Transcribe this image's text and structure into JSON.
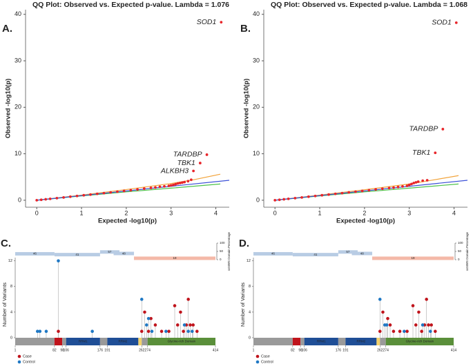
{
  "chart_data": [
    {
      "type": "scatter",
      "panel": "A.",
      "title": "QQ Plot: Observed vs. Expected p-value. Lambda = 1.076",
      "x_label": "Expected -log10(p)",
      "y_label": "Observed -log10(p)",
      "xlim": [
        -0.25,
        4.3
      ],
      "ylim": [
        -1.5,
        41
      ],
      "xticks": [
        0,
        1,
        2,
        3,
        4
      ],
      "yticks": [
        0,
        10,
        20,
        30,
        40
      ],
      "points": {
        "color": "#e8262b",
        "x": [
          0,
          0.1,
          0.2,
          0.3,
          0.45,
          0.6,
          0.75,
          0.9,
          1.05,
          1.2,
          1.35,
          1.5,
          1.65,
          1.8,
          1.95,
          2.1,
          2.25,
          2.4,
          2.55,
          2.65,
          2.75,
          2.85,
          2.95,
          3.0,
          3.05,
          3.1,
          3.15,
          3.2,
          3.25,
          3.3,
          3.38,
          3.45,
          3.5,
          3.65,
          3.8,
          4.12
        ],
        "values": [
          0,
          0.1,
          0.2,
          0.3,
          0.45,
          0.6,
          0.76,
          0.92,
          1.07,
          1.22,
          1.38,
          1.53,
          1.69,
          1.84,
          2.0,
          2.16,
          2.32,
          2.5,
          2.65,
          2.75,
          2.9,
          3.0,
          3.1,
          3.2,
          3.3,
          3.45,
          3.6,
          3.7,
          3.8,
          3.9,
          4.1,
          4.4,
          6.3,
          8.0,
          9.8,
          38.3
        ],
        "labels": [
          null,
          null,
          null,
          null,
          null,
          null,
          null,
          null,
          null,
          null,
          null,
          null,
          null,
          null,
          null,
          null,
          null,
          null,
          null,
          null,
          null,
          null,
          null,
          null,
          null,
          null,
          null,
          null,
          null,
          null,
          null,
          null,
          "ALKBH3",
          "TBK1",
          "TARDBP",
          "SOD1"
        ]
      },
      "series": [
        {
          "color": "#f2a33a",
          "x": [
            0,
            1,
            2,
            3,
            3.5,
            4.1
          ],
          "values": [
            0,
            1.1,
            2.3,
            3.6,
            4.4,
            5.6
          ]
        },
        {
          "color": "#4cc24a",
          "x": [
            0,
            1,
            2,
            3,
            4.1
          ],
          "values": [
            0,
            0.92,
            1.8,
            2.6,
            3.5
          ]
        },
        {
          "color": "#3a4fd6",
          "x": [
            0,
            4.3
          ],
          "values": [
            0,
            4.3
          ]
        }
      ]
    },
    {
      "type": "scatter",
      "panel": "B.",
      "title": "QQ Plot: Observed vs. Expected p-value. Lambda = 1.068",
      "x_label": "Expected -log10(p)",
      "y_label": "Observed -log10(p)",
      "xlim": [
        -0.25,
        4.3
      ],
      "ylim": [
        -1.5,
        41
      ],
      "xticks": [
        0,
        1,
        2,
        3,
        4
      ],
      "yticks": [
        0,
        10,
        20,
        30,
        40
      ],
      "points": {
        "color": "#e8262b",
        "x": [
          0,
          0.1,
          0.2,
          0.3,
          0.45,
          0.6,
          0.75,
          0.9,
          1.05,
          1.2,
          1.35,
          1.5,
          1.65,
          1.8,
          1.95,
          2.1,
          2.25,
          2.4,
          2.55,
          2.65,
          2.75,
          2.85,
          2.95,
          3.0,
          3.05,
          3.1,
          3.15,
          3.2,
          3.3,
          3.4,
          3.58,
          3.75,
          4.05
        ],
        "values": [
          0,
          0.1,
          0.2,
          0.3,
          0.45,
          0.6,
          0.76,
          0.92,
          1.07,
          1.22,
          1.38,
          1.53,
          1.69,
          1.84,
          2.0,
          2.16,
          2.32,
          2.48,
          2.62,
          2.72,
          2.85,
          2.98,
          3.1,
          3.3,
          3.5,
          3.7,
          3.85,
          4.0,
          4.2,
          4.3,
          10.2,
          15.3,
          38.2
        ],
        "labels": [
          null,
          null,
          null,
          null,
          null,
          null,
          null,
          null,
          null,
          null,
          null,
          null,
          null,
          null,
          null,
          null,
          null,
          null,
          null,
          null,
          null,
          null,
          null,
          null,
          null,
          null,
          null,
          null,
          null,
          null,
          "TBK1",
          "TARDBP",
          "SOD1"
        ]
      },
      "series": [
        {
          "color": "#f2a33a",
          "x": [
            0,
            1,
            2,
            3,
            3.5,
            4.1
          ],
          "values": [
            0,
            1.1,
            2.25,
            3.5,
            4.3,
            5.3
          ]
        },
        {
          "color": "#4cc24a",
          "x": [
            0,
            1,
            2,
            3,
            4.1
          ],
          "values": [
            0,
            0.92,
            1.8,
            2.6,
            3.5
          ]
        },
        {
          "color": "#3a4fd6",
          "x": [
            0,
            4.3
          ],
          "values": [
            0,
            4.3
          ]
        }
      ]
    },
    {
      "type": "lollipop",
      "panel": "C.",
      "y_label": "Number of Variants",
      "xlim": [
        1,
        414
      ],
      "xticks": [
        1,
        82,
        98,
        106,
        176,
        191,
        262,
        274,
        414
      ],
      "ylim": [
        0,
        12.5
      ],
      "yticks": [
        0,
        4,
        8,
        12
      ],
      "series": [
        {
          "name": "Case",
          "color": "#c0141c",
          "x": [
            90,
            262,
            268,
            276,
            281,
            290,
            303,
            318,
            330,
            336,
            342,
            348,
            354,
            358,
            362,
            368,
            376
          ],
          "values": [
            1,
            1,
            4,
            1,
            3,
            2,
            1,
            1,
            5,
            2,
            4,
            1,
            2,
            6,
            2,
            2,
            1
          ]
        },
        {
          "name": "Control",
          "color": "#1f78c4",
          "x": [
            47,
            52,
            65,
            90,
            160,
            262,
            272,
            276,
            283,
            312,
            350,
            358,
            366
          ],
          "values": [
            1,
            1,
            1,
            12,
            1,
            6,
            2,
            3,
            1,
            1,
            2,
            1,
            1
          ]
        }
      ],
      "domains": [
        {
          "start": 1,
          "end": 82,
          "color": "#9a9a9a"
        },
        {
          "start": 82,
          "end": 98,
          "color": "#c0141c"
        },
        {
          "start": 98,
          "end": 106,
          "color": "#9a9a9a"
        },
        {
          "start": 106,
          "end": 176,
          "color": "#1f4e96",
          "label": "RRM1"
        },
        {
          "start": 176,
          "end": 191,
          "color": "#9a9a9a"
        },
        {
          "start": 191,
          "end": 255,
          "color": "#1f4e96",
          "label": "RRM2"
        },
        {
          "start": 255,
          "end": 262,
          "color": "#f2d16b"
        },
        {
          "start": 262,
          "end": 274,
          "color": "#9a9a9a"
        },
        {
          "start": 274,
          "end": 414,
          "color": "#5a8f3a",
          "label": "Glycine-rich Domain"
        }
      ],
      "track": {
        "y_label": "ssNWS Domain Percentage",
        "ylim": [
          0,
          100
        ],
        "yticks": [
          0,
          50,
          100
        ],
        "bars": [
          {
            "start": 1,
            "end": 82,
            "value": 46,
            "color": "#b8cce4"
          },
          {
            "start": 82,
            "end": 176,
            "value": 41,
            "color": "#b8cce4"
          },
          {
            "start": 176,
            "end": 216,
            "value": 57,
            "color": "#b8cce4"
          },
          {
            "start": 204,
            "end": 246,
            "value": 48,
            "color": "#b8cce4"
          },
          {
            "start": 246,
            "end": 414,
            "value": 19,
            "color": "#f4b9a8"
          }
        ]
      }
    },
    {
      "type": "lollipop",
      "panel": "D.",
      "y_label": "Number of Variants",
      "xlim": [
        1,
        414
      ],
      "xticks": [
        1,
        82,
        98,
        106,
        176,
        191,
        262,
        274,
        414
      ],
      "ylim": [
        0,
        12.5
      ],
      "yticks": [
        0,
        4,
        8,
        12
      ],
      "series": [
        {
          "name": "Case",
          "color": "#c0141c",
          "x": [
            262,
            268,
            278,
            283,
            290,
            303,
            318,
            330,
            336,
            342,
            348,
            354,
            358,
            362,
            368,
            376
          ],
          "values": [
            1,
            4,
            3,
            2,
            1,
            1,
            1,
            5,
            2,
            4,
            1,
            2,
            6,
            2,
            2,
            1
          ]
        },
        {
          "name": "Control",
          "color": "#1f78c4",
          "x": [
            262,
            272,
            276,
            312,
            350,
            366
          ],
          "values": [
            6,
            2,
            2,
            1,
            2,
            1
          ]
        }
      ],
      "domains": [
        {
          "start": 1,
          "end": 82,
          "color": "#9a9a9a"
        },
        {
          "start": 82,
          "end": 98,
          "color": "#c0141c"
        },
        {
          "start": 98,
          "end": 106,
          "color": "#9a9a9a"
        },
        {
          "start": 106,
          "end": 176,
          "color": "#1f4e96",
          "label": "RRM1"
        },
        {
          "start": 176,
          "end": 191,
          "color": "#9a9a9a"
        },
        {
          "start": 191,
          "end": 255,
          "color": "#1f4e96",
          "label": "RRM2"
        },
        {
          "start": 255,
          "end": 262,
          "color": "#f2d16b"
        },
        {
          "start": 262,
          "end": 274,
          "color": "#9a9a9a"
        },
        {
          "start": 274,
          "end": 414,
          "color": "#5a8f3a",
          "label": "Glycine-rich Domain"
        }
      ],
      "track": {
        "y_label": "ssNWS Domain Percentage",
        "ylim": [
          0,
          100
        ],
        "yticks": [
          0,
          50,
          100
        ],
        "bars": [
          {
            "start": 1,
            "end": 82,
            "value": 46,
            "color": "#b8cce4"
          },
          {
            "start": 82,
            "end": 176,
            "value": 41,
            "color": "#b8cce4"
          },
          {
            "start": 176,
            "end": 216,
            "value": 57,
            "color": "#b8cce4"
          },
          {
            "start": 204,
            "end": 246,
            "value": 48,
            "color": "#b8cce4"
          },
          {
            "start": 246,
            "end": 414,
            "value": 19,
            "color": "#f4b9a8"
          }
        ]
      }
    }
  ]
}
